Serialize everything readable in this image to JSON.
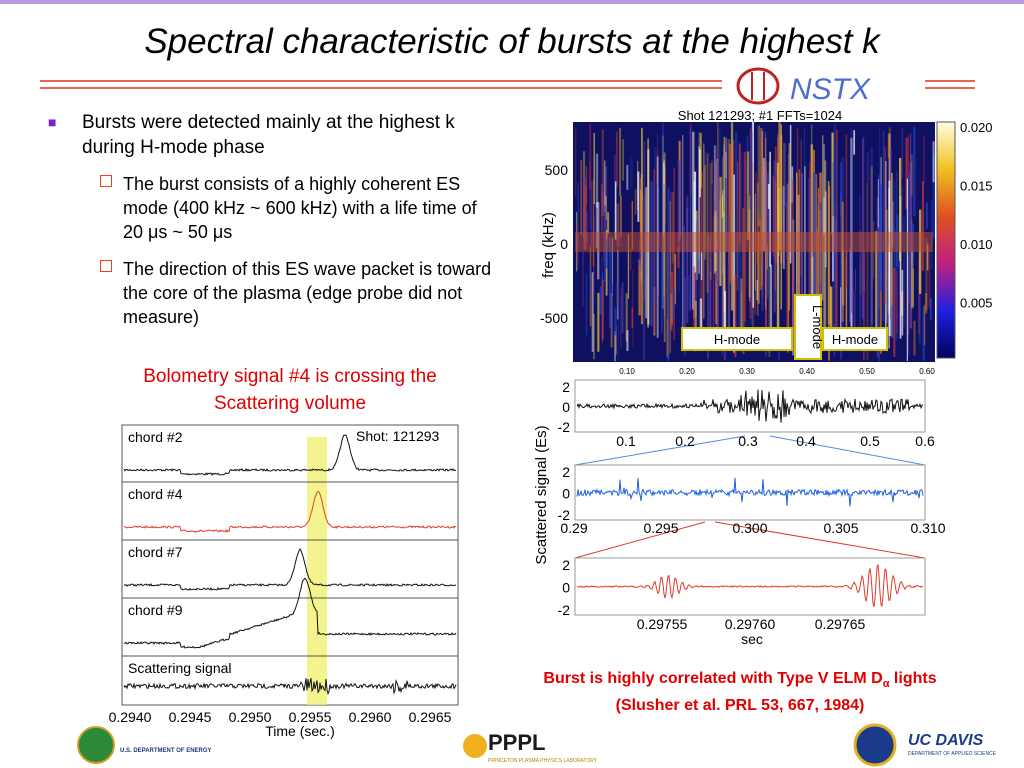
{
  "header": {
    "title": "Spectral characteristic of bursts at the highest k",
    "logo": "NSTX"
  },
  "bullets": [
    {
      "text": "Bursts were detected mainly at the highest k during H-mode phase",
      "subs": [
        "The burst consists of a highly coherent ES mode (400 kHz ~ 600 kHz) with a life time of 20 μs ~ 50 μs",
        "The direction of this ES wave packet is toward the core of the plasma (edge probe did not measure)"
      ]
    }
  ],
  "bolometry": {
    "caption": "Bolometry signal #4 is crossing the Scattering volume",
    "chords": [
      "chord #2",
      "chord #4",
      "chord #7",
      "chord #9",
      "Scattering signal"
    ],
    "shot": "Shot: 121293",
    "xticks": [
      "0.2940",
      "0.2945",
      "0.2950",
      "0.2955",
      "0.2960",
      "0.2965"
    ],
    "xlabel": "Time (sec.)"
  },
  "spectrogram": {
    "title": "Shot 121293; #1 FFTs=1024",
    "ylabel": "freq (kHz)",
    "yticks": [
      "500",
      "0",
      "-500"
    ],
    "xticks": [
      "0.10",
      "0.20",
      "0.30",
      "0.40",
      "0.50",
      "0.60"
    ],
    "colorbar_ticks": [
      "0.020",
      "0.015",
      "0.010",
      "0.005"
    ],
    "regions": [
      "H-mode",
      "L-mode",
      "H-mode"
    ]
  },
  "scattered": {
    "ylabel": "Scattered signal (Es)",
    "panels": [
      {
        "yticks": [
          "2",
          "0",
          "-2"
        ],
        "xticks": [
          "0.1",
          "0.2",
          "0.3",
          "0.4",
          "0.5",
          "0.6"
        ]
      },
      {
        "yticks": [
          "2",
          "0",
          "-2"
        ],
        "xticks": [
          "0.29",
          "0.295",
          "0.300",
          "0.305",
          "0.310"
        ]
      },
      {
        "yticks": [
          "2",
          "0",
          "-2"
        ],
        "xticks": [
          "0.29755",
          "0.29760",
          "0.29765"
        ]
      }
    ],
    "xlabel": "sec"
  },
  "caption": {
    "line1": "Burst is highly correlated with Type V ELM D",
    "sub": "α",
    "line1_end": " lights",
    "line2": "(Slusher et al. PRL 53, 667, 1984)"
  },
  "footer": {
    "doe": "U.S. DEPARTMENT OF ENERGY",
    "pppl": "PPPL",
    "pppl_sub": "PRINCETON PLASMA PHYSICS LABORATORY",
    "ucd": "UC DAVIS",
    "ucd_sub": "DEPARTMENT OF APPLIED SCIENCE"
  }
}
